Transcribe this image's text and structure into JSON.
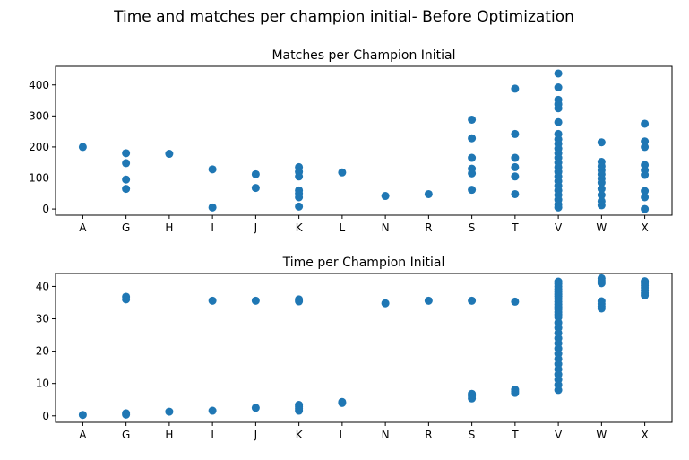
{
  "figure": {
    "suptitle": "Time and matches per champion initial- Before Optimization",
    "point_color": "#1f77b4"
  },
  "chart_data": [
    {
      "type": "scatter",
      "title": "Matches per Champion Initial",
      "xlabel": "",
      "ylabel": "",
      "categories": [
        "A",
        "G",
        "H",
        "I",
        "J",
        "K",
        "L",
        "N",
        "R",
        "S",
        "T",
        "V",
        "W",
        "X"
      ],
      "yticks": [
        0,
        100,
        200,
        300,
        400
      ],
      "ylim": [
        -20,
        460
      ],
      "grid": false,
      "points": {
        "A": [
          200
        ],
        "G": [
          180,
          148,
          95,
          65
        ],
        "H": [
          178
        ],
        "I": [
          128,
          5
        ],
        "J": [
          112,
          68
        ],
        "K": [
          135,
          120,
          105,
          60,
          50,
          38,
          8
        ],
        "L": [
          118
        ],
        "N": [
          42
        ],
        "R": [
          48
        ],
        "S": [
          288,
          228,
          165,
          130,
          115,
          62
        ],
        "T": [
          388,
          242,
          165,
          135,
          105,
          48
        ],
        "V": [
          437,
          392,
          352,
          338,
          325,
          280,
          242,
          225,
          210,
          195,
          180,
          165,
          150,
          135,
          120,
          105,
          90,
          75,
          60,
          45,
          30,
          15,
          5
        ],
        "W": [
          215,
          152,
          138,
          125,
          112,
          98,
          85,
          65,
          45,
          25,
          12
        ],
        "X": [
          275,
          218,
          200,
          142,
          125,
          110,
          58,
          38,
          0
        ]
      }
    },
    {
      "type": "scatter",
      "title": "Time per Champion Initial",
      "xlabel": "",
      "ylabel": "",
      "categories": [
        "A",
        "G",
        "H",
        "I",
        "J",
        "K",
        "L",
        "N",
        "R",
        "S",
        "T",
        "V",
        "W",
        "X"
      ],
      "yticks": [
        0,
        10,
        20,
        30,
        40
      ],
      "ylim": [
        -2,
        44
      ],
      "grid": false,
      "points": {
        "A": [
          0.3
        ],
        "G": [
          36.8,
          36.0,
          0.8,
          0.4
        ],
        "H": [
          1.3
        ],
        "I": [
          35.6,
          1.6
        ],
        "J": [
          35.6,
          2.5
        ],
        "K": [
          36.0,
          35.4,
          3.4,
          2.9,
          2.3,
          1.6
        ],
        "L": [
          4.3,
          4.0
        ],
        "N": [
          34.8
        ],
        "R": [
          35.6
        ],
        "S": [
          35.6,
          6.8,
          6.1,
          5.4
        ],
        "T": [
          35.3,
          8.1,
          7.6,
          7.1
        ],
        "V": [
          41.5,
          40.8,
          40.0,
          39.2,
          38.4,
          37.6,
          36.9,
          36.1,
          35.3,
          34.5,
          33.7,
          32.9,
          32.1,
          31.3,
          30.5,
          28.8,
          27.2,
          25.6,
          24.0,
          22.4,
          20.8,
          19.2,
          17.6,
          16.0,
          14.4,
          12.8,
          11.2,
          9.6,
          8.0
        ],
        "W": [
          42.5,
          41.8,
          41.0,
          35.4,
          34.6,
          33.8,
          33.2
        ],
        "X": [
          41.6,
          41.0,
          40.3,
          39.6,
          38.8,
          37.9,
          37.2
        ]
      }
    }
  ]
}
